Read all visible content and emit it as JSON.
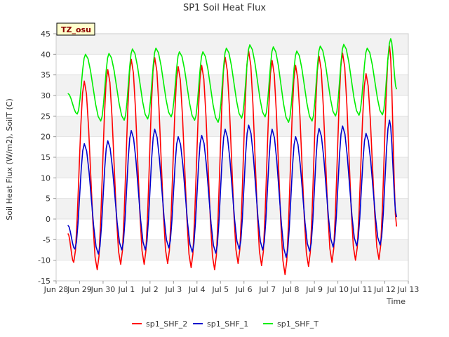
{
  "chart_data": {
    "type": "line",
    "title": "SP1 Soil Heat Flux",
    "xlabel": "Time",
    "ylabel": "Soil Heat Flux (W/m2), SoilT (C)",
    "ylim": [
      -15,
      45
    ],
    "xlim": [
      0,
      15
    ],
    "yticks": [
      -15,
      -10,
      -5,
      0,
      5,
      10,
      15,
      20,
      25,
      30,
      35,
      40,
      45
    ],
    "xticks": [
      {
        "pos": 0,
        "label": "Jun 28"
      },
      {
        "pos": 1,
        "label": "Jun 29"
      },
      {
        "pos": 2,
        "label": "Jun 30"
      },
      {
        "pos": 3,
        "label": "Jul 1"
      },
      {
        "pos": 4,
        "label": "Jul 2"
      },
      {
        "pos": 5,
        "label": "Jul 3"
      },
      {
        "pos": 6,
        "label": "Jul 4"
      },
      {
        "pos": 7,
        "label": "Jul 5"
      },
      {
        "pos": 8,
        "label": "Jul 6"
      },
      {
        "pos": 9,
        "label": "Jul 7"
      },
      {
        "pos": 10,
        "label": "Jul 8"
      },
      {
        "pos": 11,
        "label": "Jul 9"
      },
      {
        "pos": 12,
        "label": "Jul 10"
      },
      {
        "pos": 13,
        "label": "Jul 11"
      },
      {
        "pos": 14,
        "label": "Jul 12"
      },
      {
        "pos": 15,
        "label": "Jul 13"
      }
    ],
    "grid": "horizontal bands",
    "legend_position": "bottom",
    "annotation": "TZ_osu",
    "series": [
      {
        "name": "sp1_SHF_2",
        "color": "#ff0000",
        "x": [
          0.5,
          0.75,
          1.2,
          1.75,
          2.2,
          2.75,
          3.2,
          3.75,
          4.2,
          4.75,
          5.2,
          5.75,
          6.2,
          6.75,
          7.2,
          7.75,
          8.2,
          8.75,
          9.2,
          9.75,
          10.2,
          10.75,
          11.2,
          11.75,
          12.2,
          12.75,
          13.2,
          13.75,
          14.2,
          14.5
        ],
        "y": [
          -3.5,
          -10.5,
          33.5,
          -12.3,
          36.3,
          -11.0,
          38.8,
          -11.0,
          39.2,
          -10.8,
          37.0,
          -11.8,
          37.3,
          -12.3,
          39.3,
          -10.8,
          40.8,
          -11.3,
          38.5,
          -13.5,
          37.3,
          -11.5,
          39.5,
          -10.5,
          40.3,
          -10.0,
          35.3,
          -9.8,
          42.0,
          -1.8
        ]
      },
      {
        "name": "sp1_SHF_1",
        "color": "#0000cc",
        "x": [
          0.5,
          0.8,
          1.2,
          1.8,
          2.2,
          2.8,
          3.2,
          3.8,
          4.2,
          4.8,
          5.2,
          5.8,
          6.2,
          6.8,
          7.2,
          7.8,
          8.2,
          8.8,
          9.2,
          9.8,
          10.2,
          10.8,
          11.2,
          11.8,
          12.2,
          12.8,
          13.2,
          13.8,
          14.2,
          14.5
        ],
        "y": [
          -1.5,
          -7.3,
          18.3,
          -8.5,
          19.0,
          -7.5,
          21.5,
          -7.5,
          21.8,
          -7.0,
          20.0,
          -8.0,
          20.3,
          -8.3,
          21.8,
          -7.3,
          22.8,
          -7.5,
          21.8,
          -9.3,
          20.0,
          -7.8,
          22.0,
          -6.8,
          22.6,
          -6.5,
          20.8,
          -6.3,
          24.0,
          0.5
        ]
      },
      {
        "name": "sp1_SHF_T",
        "color": "#00ee00",
        "x": [
          0.5,
          0.9,
          1.25,
          1.9,
          2.25,
          2.9,
          3.25,
          3.9,
          4.25,
          4.9,
          5.25,
          5.9,
          6.25,
          6.9,
          7.25,
          7.9,
          8.25,
          8.9,
          9.25,
          9.9,
          10.25,
          10.9,
          11.25,
          11.9,
          12.25,
          12.9,
          13.25,
          13.9,
          14.25,
          14.5
        ],
        "y": [
          30.5,
          25.5,
          40.0,
          23.8,
          40.2,
          24.0,
          41.3,
          24.3,
          41.5,
          24.8,
          40.6,
          24.0,
          40.6,
          23.5,
          41.5,
          24.5,
          42.3,
          24.8,
          41.8,
          23.5,
          40.8,
          23.8,
          42.0,
          25.0,
          42.4,
          25.2,
          41.5,
          25.3,
          43.8,
          31.5
        ]
      }
    ]
  }
}
